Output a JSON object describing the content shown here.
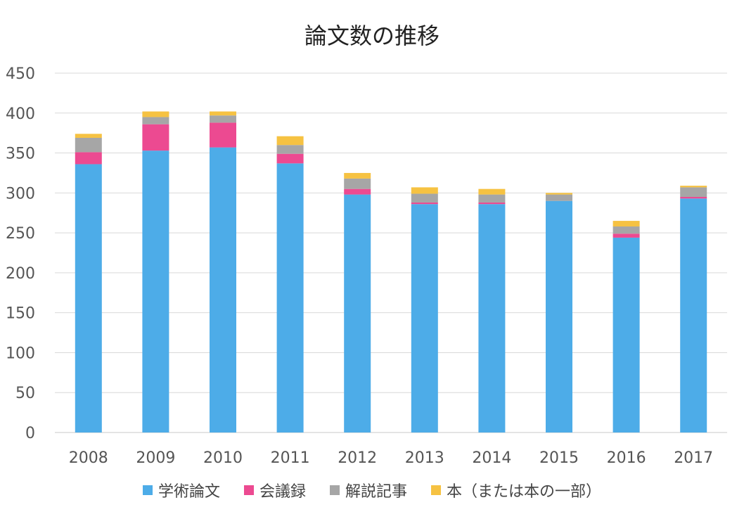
{
  "chart_data": {
    "type": "bar",
    "stacked": true,
    "title": "論文数の推移",
    "xlabel": "",
    "ylabel": "",
    "ylim": [
      0,
      450
    ],
    "yticks": [
      0,
      50,
      100,
      150,
      200,
      250,
      300,
      350,
      400,
      450
    ],
    "grid": true,
    "legend_position": "bottom",
    "categories": [
      "2008",
      "2009",
      "2010",
      "2011",
      "2012",
      "2013",
      "2014",
      "2015",
      "2016",
      "2017"
    ],
    "series": [
      {
        "name": "学術論文",
        "color": "#4DACE8",
        "values": [
          336,
          353,
          357,
          337,
          298,
          286,
          286,
          290,
          244,
          293
        ]
      },
      {
        "name": "会議録",
        "color": "#EC4A91",
        "values": [
          15,
          33,
          31,
          12,
          7,
          2,
          2,
          0,
          5,
          2
        ]
      },
      {
        "name": "解説記事",
        "color": "#A6A6A6",
        "values": [
          18,
          9,
          9,
          11,
          13,
          11,
          10,
          8,
          9,
          12
        ]
      },
      {
        "name": "本（または本の一部）",
        "color": "#F6C242",
        "values": [
          5,
          7,
          5,
          11,
          7,
          8,
          7,
          2,
          7,
          2
        ]
      }
    ]
  }
}
